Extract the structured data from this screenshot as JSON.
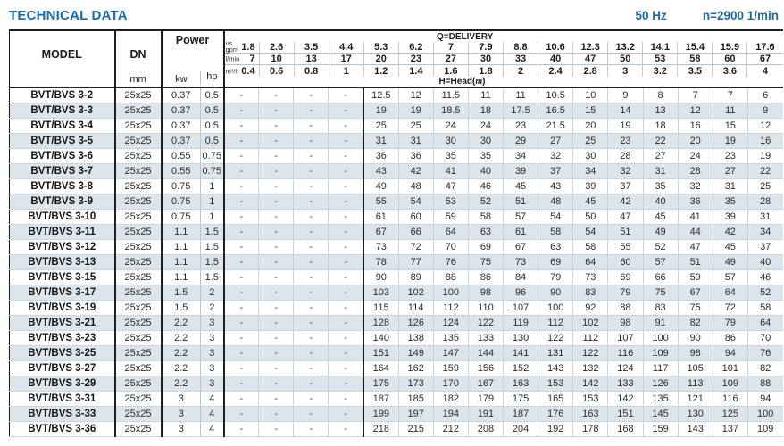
{
  "page": {
    "title": "TECHNICAL DATA",
    "frequency": "50 Hz",
    "speed": "n=2900 1/min"
  },
  "colors": {
    "accent_blue": "#1a6aa8",
    "row_stripe": "#dce5eb",
    "grid_line": "#c9d3da",
    "heavy_line": "#1f1f1f"
  },
  "table": {
    "header": {
      "model": "MODEL",
      "dn": "DN",
      "dn_unit": "mm",
      "power": "Power",
      "kw": "kw",
      "hp": "hp",
      "delivery_title": "Q=DELIVERY",
      "head_title_prefix": "H=Head(",
      "head_title_unit": "m",
      "head_title_suffix": ")",
      "unit_rows": [
        {
          "label": "us\ngpm",
          "values": [
            "1.8",
            "2.6",
            "3.5",
            "4.4",
            "5.3",
            "6.2",
            "7",
            "7.9",
            "8.8",
            "10.6",
            "12.3",
            "13.2",
            "14.1",
            "15.4",
            "15.9",
            "17.6"
          ]
        },
        {
          "label": "l/min",
          "values": [
            "7",
            "10",
            "13",
            "17",
            "20",
            "23",
            "27",
            "30",
            "33",
            "40",
            "47",
            "50",
            "53",
            "58",
            "60",
            "67"
          ]
        },
        {
          "label": "m³/h",
          "values": [
            "0.4",
            "0.6",
            "0.8",
            "1",
            "1.2",
            "1.4",
            "1.6",
            "1.8",
            "2",
            "2.4",
            "2.8",
            "3",
            "3.2",
            "3.5",
            "3.6",
            "4"
          ]
        }
      ]
    },
    "rows": [
      {
        "model": "BVT/BVS 3-2",
        "dn": "25x25",
        "kw": "0.37",
        "hp": "0.5",
        "head": [
          "-",
          "-",
          "-",
          "-",
          "12.5",
          "12",
          "11.5",
          "11",
          "11",
          "10.5",
          "10",
          "9",
          "8",
          "7",
          "7",
          "6"
        ]
      },
      {
        "model": "BVT/BVS 3-3",
        "dn": "25x25",
        "kw": "0.37",
        "hp": "0.5",
        "head": [
          "-",
          "-",
          "-",
          "-",
          "19",
          "19",
          "18.5",
          "18",
          "17.5",
          "16.5",
          "15",
          "14",
          "13",
          "12",
          "11",
          "9"
        ]
      },
      {
        "model": "BVT/BVS 3-4",
        "dn": "25x25",
        "kw": "0.37",
        "hp": "0.5",
        "head": [
          "-",
          "-",
          "-",
          "-",
          "25",
          "25",
          "24",
          "24",
          "23",
          "21.5",
          "20",
          "19",
          "18",
          "16",
          "15",
          "12"
        ]
      },
      {
        "model": "BVT/BVS 3-5",
        "dn": "25x25",
        "kw": "0.37",
        "hp": "0.5",
        "head": [
          "-",
          "-",
          "-",
          "-",
          "31",
          "31",
          "30",
          "30",
          "29",
          "27",
          "25",
          "23",
          "22",
          "20",
          "19",
          "16"
        ]
      },
      {
        "model": "BVT/BVS 3-6",
        "dn": "25x25",
        "kw": "0.55",
        "hp": "0.75",
        "head": [
          "-",
          "-",
          "-",
          "-",
          "36",
          "36",
          "35",
          "35",
          "34",
          "32",
          "30",
          "28",
          "27",
          "24",
          "23",
          "19"
        ]
      },
      {
        "model": "BVT/BVS 3-7",
        "dn": "25x25",
        "kw": "0.55",
        "hp": "0.75",
        "head": [
          "-",
          "-",
          "-",
          "-",
          "43",
          "42",
          "41",
          "40",
          "39",
          "37",
          "34",
          "32",
          "31",
          "28",
          "27",
          "22"
        ]
      },
      {
        "model": "BVT/BVS 3-8",
        "dn": "25x25",
        "kw": "0.75",
        "hp": "1",
        "head": [
          "-",
          "-",
          "-",
          "-",
          "49",
          "48",
          "47",
          "46",
          "45",
          "43",
          "39",
          "37",
          "35",
          "32",
          "31",
          "25"
        ]
      },
      {
        "model": "BVT/BVS 3-9",
        "dn": "25x25",
        "kw": "0.75",
        "hp": "1",
        "head": [
          "-",
          "-",
          "-",
          "-",
          "55",
          "54",
          "53",
          "52",
          "51",
          "48",
          "45",
          "42",
          "40",
          "36",
          "35",
          "28"
        ]
      },
      {
        "model": "BVT/BVS 3-10",
        "dn": "25x25",
        "kw": "0.75",
        "hp": "1",
        "head": [
          "-",
          "-",
          "-",
          "-",
          "61",
          "60",
          "59",
          "58",
          "57",
          "54",
          "50",
          "47",
          "45",
          "41",
          "39",
          "31"
        ]
      },
      {
        "model": "BVT/BVS 3-11",
        "dn": "25x25",
        "kw": "1.1",
        "hp": "1.5",
        "head": [
          "-",
          "-",
          "-",
          "-",
          "67",
          "66",
          "64",
          "63",
          "61",
          "58",
          "54",
          "51",
          "49",
          "44",
          "42",
          "34"
        ]
      },
      {
        "model": "BVT/BVS 3-12",
        "dn": "25x25",
        "kw": "1.1",
        "hp": "1.5",
        "head": [
          "-",
          "-",
          "-",
          "-",
          "73",
          "72",
          "70",
          "69",
          "67",
          "63",
          "58",
          "55",
          "52",
          "47",
          "45",
          "37"
        ]
      },
      {
        "model": "BVT/BVS 3-13",
        "dn": "25x25",
        "kw": "1.1",
        "hp": "1.5",
        "head": [
          "-",
          "-",
          "-",
          "-",
          "78",
          "77",
          "76",
          "75",
          "73",
          "69",
          "64",
          "60",
          "57",
          "51",
          "49",
          "40"
        ]
      },
      {
        "model": "BVT/BVS 3-15",
        "dn": "25x25",
        "kw": "1.1",
        "hp": "1.5",
        "head": [
          "-",
          "-",
          "-",
          "-",
          "90",
          "89",
          "88",
          "86",
          "84",
          "79",
          "73",
          "69",
          "66",
          "59",
          "57",
          "46"
        ]
      },
      {
        "model": "BVT/BVS 3-17",
        "dn": "25x25",
        "kw": "1.5",
        "hp": "2",
        "head": [
          "-",
          "-",
          "-",
          "-",
          "103",
          "102",
          "100",
          "98",
          "96",
          "90",
          "83",
          "79",
          "75",
          "67",
          "64",
          "52"
        ]
      },
      {
        "model": "BVT/BVS 3-19",
        "dn": "25x25",
        "kw": "1.5",
        "hp": "2",
        "head": [
          "-",
          "-",
          "-",
          "-",
          "115",
          "114",
          "112",
          "110",
          "107",
          "100",
          "92",
          "88",
          "83",
          "75",
          "72",
          "58"
        ]
      },
      {
        "model": "BVT/BVS 3-21",
        "dn": "25x25",
        "kw": "2.2",
        "hp": "3",
        "head": [
          "-",
          "-",
          "-",
          "-",
          "128",
          "126",
          "124",
          "122",
          "119",
          "112",
          "102",
          "98",
          "91",
          "82",
          "79",
          "64"
        ]
      },
      {
        "model": "BVT/BVS 3-23",
        "dn": "25x25",
        "kw": "2.2",
        "hp": "3",
        "head": [
          "-",
          "-",
          "-",
          "-",
          "140",
          "138",
          "135",
          "133",
          "130",
          "122",
          "112",
          "107",
          "100",
          "90",
          "86",
          "70"
        ]
      },
      {
        "model": "BVT/BVS 3-25",
        "dn": "25x25",
        "kw": "2.2",
        "hp": "3",
        "head": [
          "-",
          "-",
          "-",
          "-",
          "151",
          "149",
          "147",
          "144",
          "141",
          "131",
          "122",
          "116",
          "109",
          "98",
          "94",
          "76"
        ]
      },
      {
        "model": "BVT/BVS 3-27",
        "dn": "25x25",
        "kw": "2.2",
        "hp": "3",
        "head": [
          "-",
          "-",
          "-",
          "-",
          "164",
          "162",
          "159",
          "156",
          "152",
          "143",
          "132",
          "124",
          "117",
          "105",
          "101",
          "82"
        ]
      },
      {
        "model": "BVT/BVS 3-29",
        "dn": "25x25",
        "kw": "2.2",
        "hp": "3",
        "head": [
          "-",
          "-",
          "-",
          "-",
          "175",
          "173",
          "170",
          "167",
          "163",
          "153",
          "142",
          "133",
          "126",
          "113",
          "109",
          "88"
        ]
      },
      {
        "model": "BVT/BVS 3-31",
        "dn": "25x25",
        "kw": "3",
        "hp": "4",
        "head": [
          "-",
          "-",
          "-",
          "-",
          "187",
          "185",
          "182",
          "179",
          "175",
          "165",
          "153",
          "142",
          "135",
          "121",
          "116",
          "94"
        ]
      },
      {
        "model": "BVT/BVS 3-33",
        "dn": "25x25",
        "kw": "3",
        "hp": "4",
        "head": [
          "-",
          "-",
          "-",
          "-",
          "199",
          "197",
          "194",
          "191",
          "187",
          "176",
          "163",
          "151",
          "145",
          "130",
          "125",
          "100"
        ]
      },
      {
        "model": "BVT/BVS 3-36",
        "dn": "25x25",
        "kw": "3",
        "hp": "4",
        "head": [
          "-",
          "-",
          "-",
          "-",
          "218",
          "215",
          "212",
          "208",
          "204",
          "192",
          "178",
          "168",
          "159",
          "143",
          "137",
          "109"
        ]
      }
    ]
  }
}
